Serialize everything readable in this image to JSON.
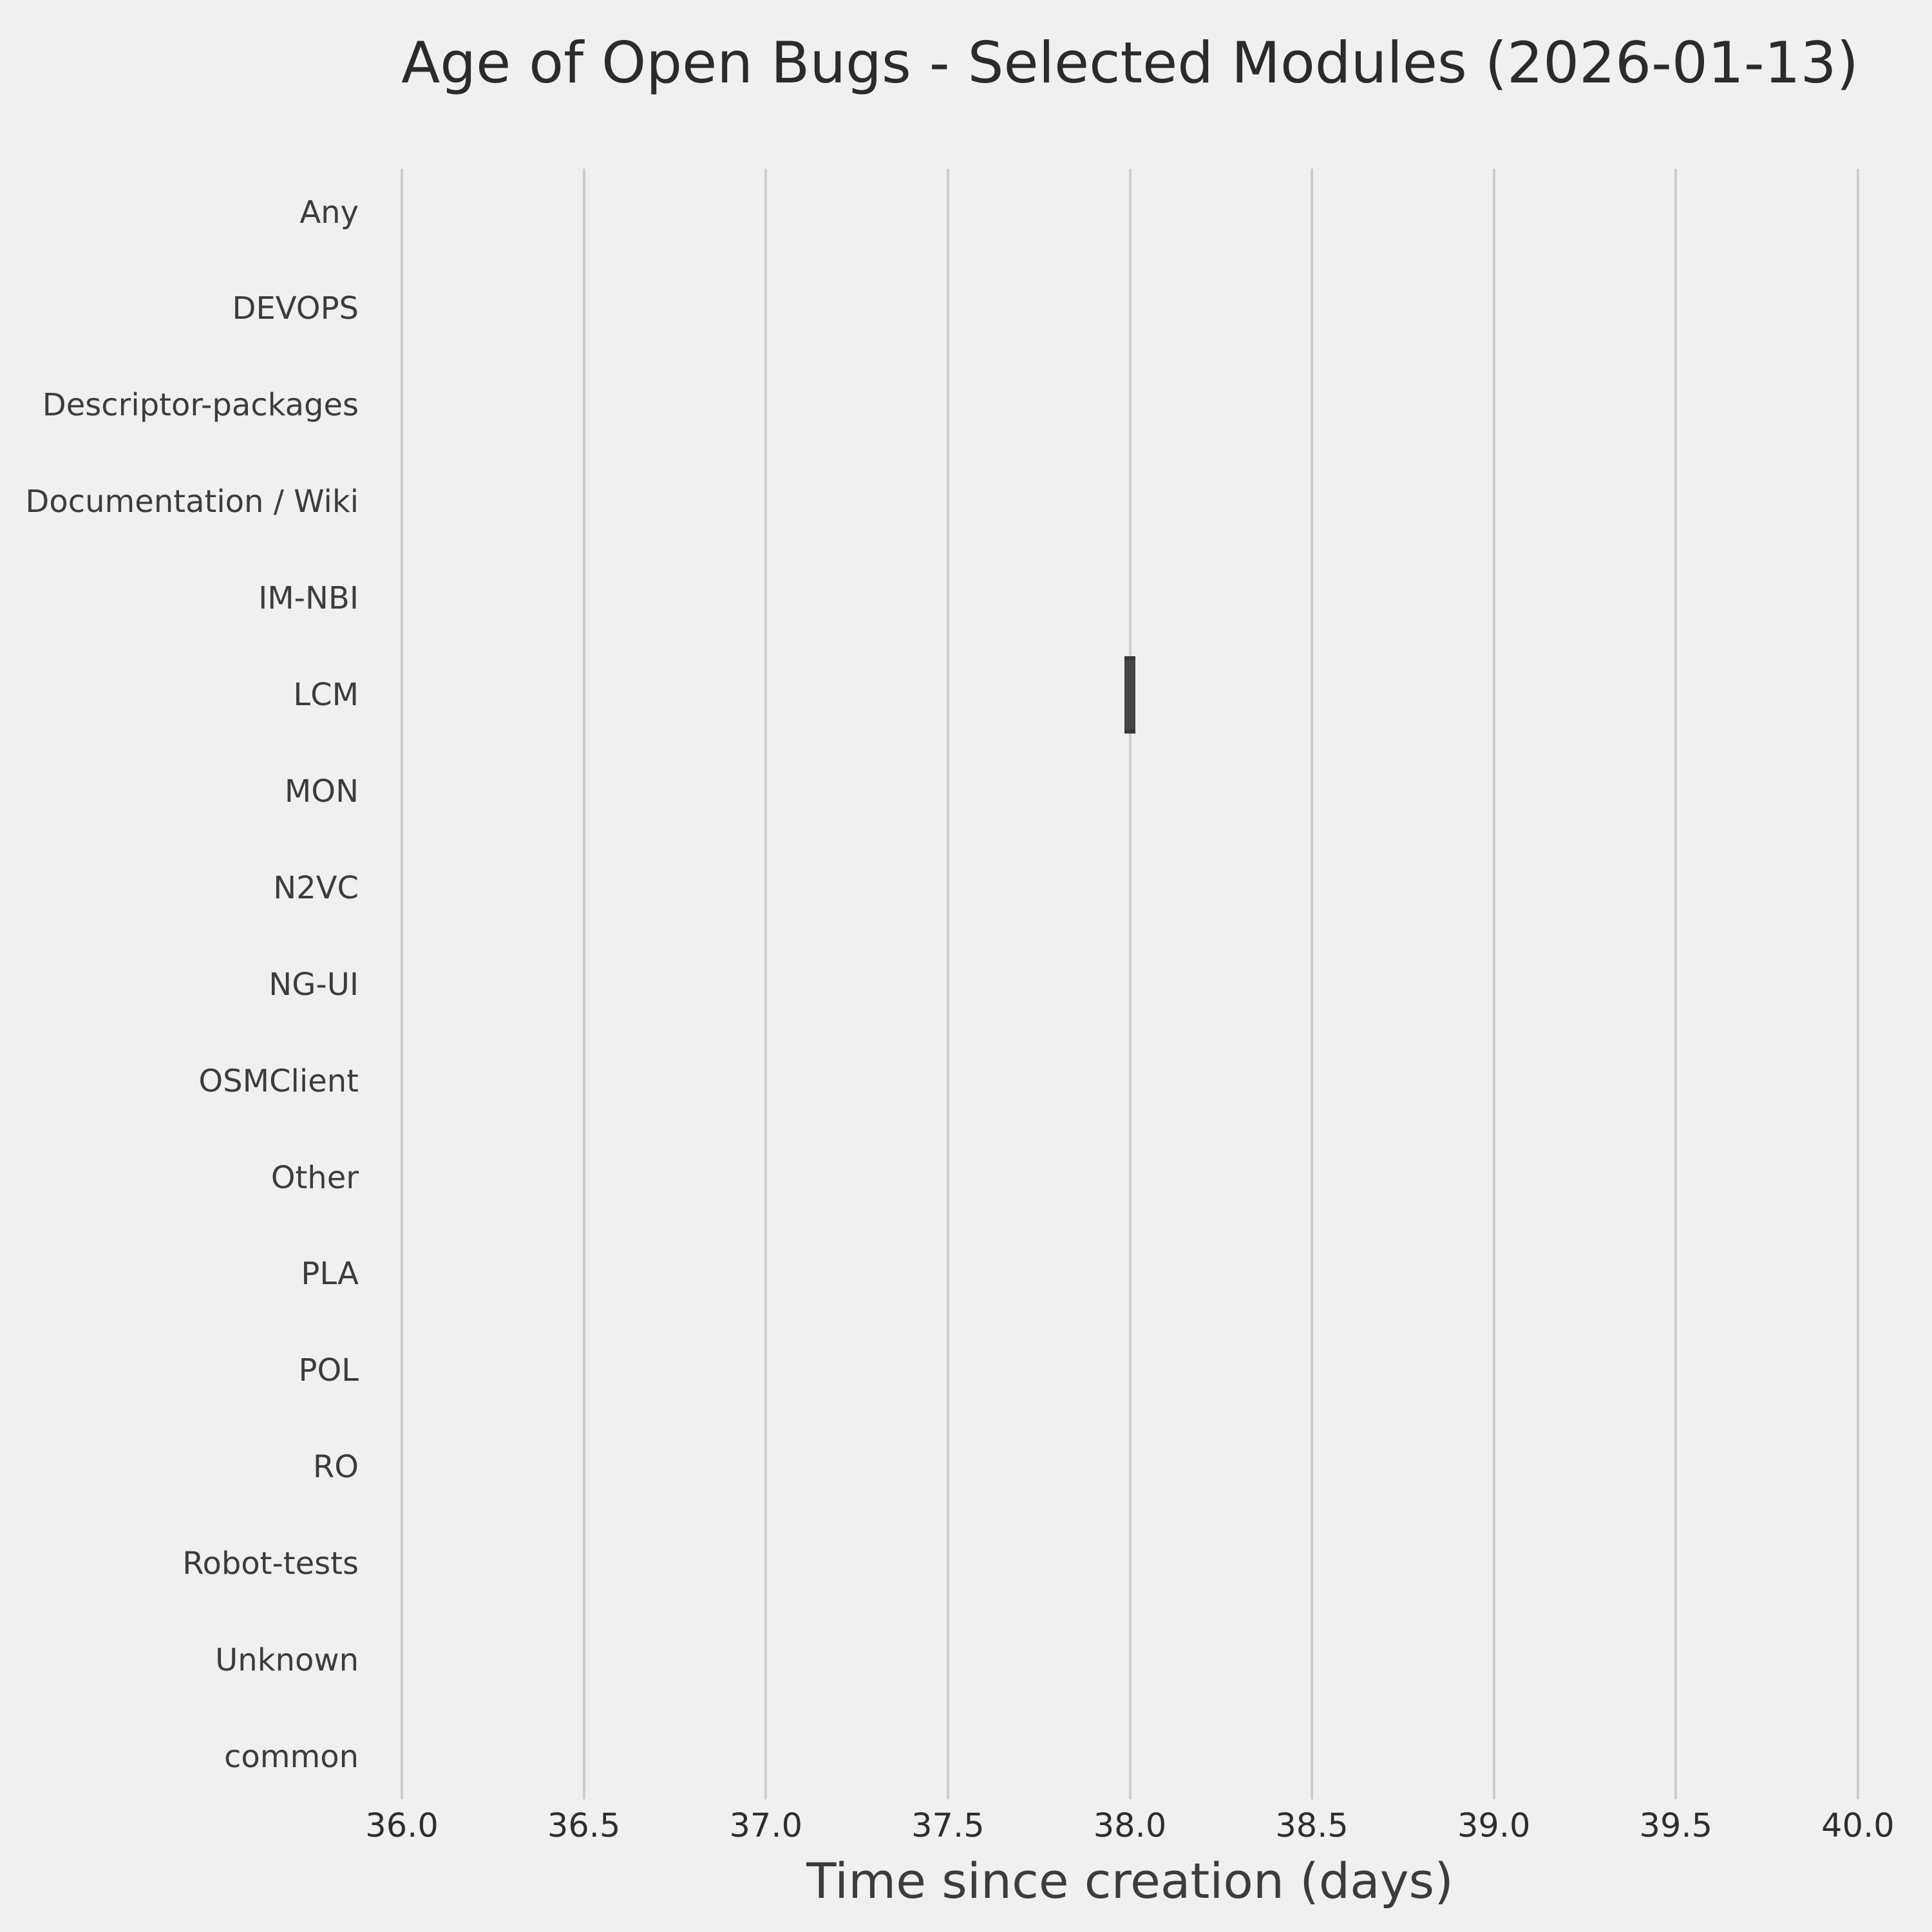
{
  "title": "Age of Open Bugs - Selected Modules (2026-01-13)",
  "chart_data": {
    "type": "boxplot",
    "orientation": "horizontal",
    "title": "Age of Open Bugs - Selected Modules (2026-01-13)",
    "xlabel": "Time since creation (days)",
    "ylabel": "",
    "categories": [
      "Any",
      "DEVOPS",
      "Descriptor-packages",
      "Documentation / Wiki",
      "IM-NBI",
      "LCM",
      "MON",
      "N2VC",
      "NG-UI",
      "OSMClient",
      "Other",
      "PLA",
      "POL",
      "RO",
      "Robot-tests",
      "Unknown",
      "common"
    ],
    "boxes": [
      {
        "category": "LCM",
        "min": 38.0,
        "q1": 38.0,
        "median": 38.0,
        "q3": 38.0,
        "max": 38.0
      }
    ],
    "xlim": [
      35.8,
      40.2
    ],
    "x_ticks": [
      {
        "value": 36.0,
        "label": "36.0"
      },
      {
        "value": 36.5,
        "label": "36.5"
      },
      {
        "value": 37.0,
        "label": "37.0"
      },
      {
        "value": 37.5,
        "label": "37.5"
      },
      {
        "value": 38.0,
        "label": "38.0"
      },
      {
        "value": 38.5,
        "label": "38.5"
      },
      {
        "value": 39.0,
        "label": "39.0"
      },
      {
        "value": 39.5,
        "label": "39.5"
      },
      {
        "value": 40.0,
        "label": "40.0"
      }
    ],
    "grid": "vertical-only",
    "legend": "none",
    "colors": {
      "background": "#F0F0F0",
      "grid": "#CCCCCC",
      "box": "#454545",
      "box_edge": "#383838",
      "title_text": "#2B2B2B",
      "tick_text": "#2E2E2E",
      "label_text": "#3C3C3C"
    }
  }
}
